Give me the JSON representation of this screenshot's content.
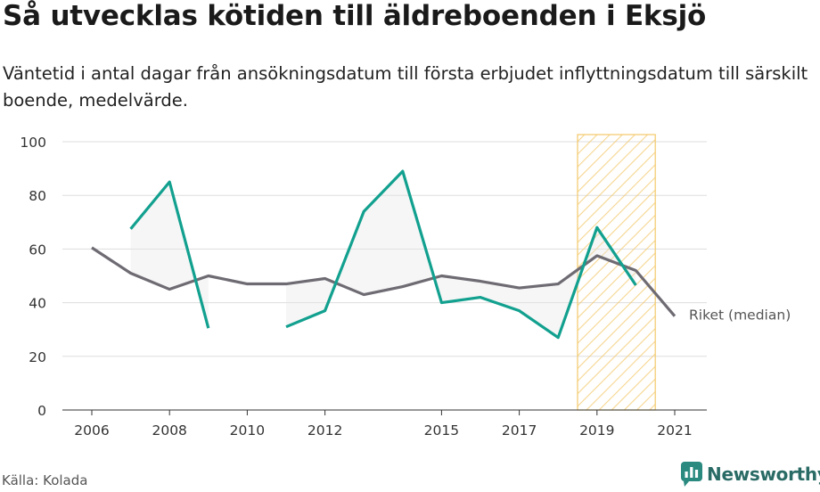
{
  "header": {
    "title": "Så utvecklas kötiden till äldreboenden i Eksjö",
    "subtitle": "Väntetid i antal dagar från ansökningsdatum till första erbjudet inflyttningsdatum till särskilt boende, medelvärde."
  },
  "footer": {
    "source": "Källa: Kolada",
    "brand": "Newsworthy"
  },
  "colors": {
    "local": "#12a08f",
    "national": "#6f6b73",
    "highlight_stroke": "#f3c96a",
    "grid": "#dddddd"
  },
  "chart_data": {
    "type": "line",
    "x": [
      2006,
      2007,
      2008,
      2009,
      2010,
      2011,
      2012,
      2013,
      2014,
      2015,
      2016,
      2017,
      2018,
      2019,
      2020,
      2021
    ],
    "xticks": [
      2006,
      2008,
      2010,
      2012,
      2015,
      2017,
      2019,
      2021
    ],
    "yticks": [
      0,
      20,
      40,
      60,
      80,
      100
    ],
    "ylim": [
      0,
      100
    ],
    "xlim": [
      2005.2,
      2021.7
    ],
    "grid": true,
    "series": [
      {
        "name": "",
        "color": "#12a08f",
        "values": [
          null,
          67.5,
          85,
          30.5,
          null,
          31,
          37,
          74,
          89,
          40,
          42,
          37,
          27,
          68,
          46.5,
          null
        ]
      },
      {
        "name": "Riket (median)",
        "color": "#6f6b73",
        "values": [
          60.5,
          51,
          45,
          50,
          47,
          47,
          49,
          43,
          46,
          50,
          48,
          45.5,
          47,
          57.5,
          52,
          35
        ]
      }
    ],
    "highlight": {
      "x_start": 2018.5,
      "x_end": 2020.5,
      "pattern": "diagonal-hatch"
    }
  }
}
